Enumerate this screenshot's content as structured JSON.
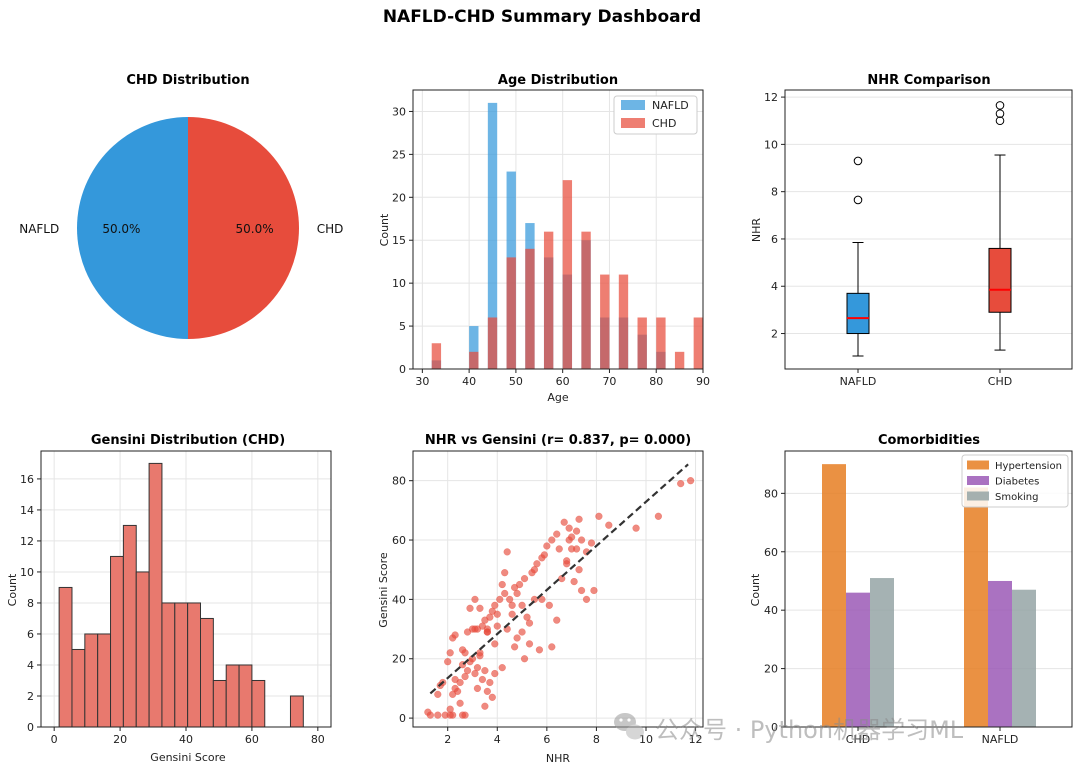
{
  "dashboard": {
    "title": "NAFLD-CHD Summary Dashboard"
  },
  "watermark": {
    "text": "公众号 · Python机器学习ML"
  },
  "colors": {
    "nafld": "#3498db",
    "chd": "#e74c3c",
    "hypertension": "#e67e22",
    "diabetes": "#9b59b6",
    "smoking": "#95a5a6",
    "scatter": "#e74c3c",
    "fit": "#333333",
    "gensini_hist": "#e8796e"
  },
  "chart_data": [
    {
      "id": "chd-distribution",
      "type": "pie",
      "title": "CHD Distribution",
      "slices": [
        {
          "label": "NAFLD",
          "value": 50.0,
          "pct_label": "50.0%"
        },
        {
          "label": "CHD",
          "value": 50.0,
          "pct_label": "50.0%"
        }
      ]
    },
    {
      "id": "age-distribution",
      "type": "bar",
      "title": "Age Distribution",
      "xlabel": "Age",
      "ylabel": "Count",
      "xlim": [
        28,
        90
      ],
      "ylim": [
        0,
        32.5
      ],
      "xticks": [
        30,
        40,
        50,
        60,
        70,
        80,
        90
      ],
      "yticks": [
        0,
        5,
        10,
        15,
        20,
        25,
        30
      ],
      "bin_width": 4,
      "series": [
        {
          "name": "NAFLD",
          "x": [
            34,
            42,
            46,
            50,
            54,
            58,
            62,
            66,
            70,
            74,
            78,
            82
          ],
          "values": [
            1,
            5,
            31,
            23,
            17,
            13,
            11,
            15,
            6,
            6,
            4,
            2
          ]
        },
        {
          "name": "CHD",
          "x": [
            32,
            40,
            44,
            48,
            52,
            56,
            60,
            64,
            68,
            72,
            76,
            80,
            84,
            88
          ],
          "values": [
            3,
            2,
            6,
            13,
            14,
            16,
            22,
            16,
            11,
            11,
            6,
            6,
            2,
            6
          ]
        }
      ],
      "legend": "top-right"
    },
    {
      "id": "nhr-comparison",
      "type": "box",
      "title": "NHR Comparison",
      "ylabel": "NHR",
      "ylim": [
        0.5,
        12.3
      ],
      "yticks": [
        2,
        4,
        6,
        8,
        10,
        12
      ],
      "categories": [
        "NAFLD",
        "CHD"
      ],
      "boxes": [
        {
          "name": "NAFLD",
          "whisker_low": 1.05,
          "q1": 2.0,
          "median": 2.65,
          "q3": 3.7,
          "whisker_high": 5.85,
          "outliers": [
            7.65,
            9.3
          ]
        },
        {
          "name": "CHD",
          "whisker_low": 1.3,
          "q1": 2.9,
          "median": 3.85,
          "q3": 5.6,
          "whisker_high": 9.55,
          "outliers": [
            11.0,
            11.3,
            11.65
          ]
        }
      ]
    },
    {
      "id": "gensini-distribution",
      "type": "bar",
      "title": "Gensini Distribution (CHD)",
      "xlabel": "Gensini Score",
      "ylabel": "Count",
      "xlim": [
        -4,
        84
      ],
      "ylim": [
        0,
        17.8
      ],
      "xticks": [
        0,
        20,
        40,
        60,
        80
      ],
      "yticks": [
        0,
        2,
        4,
        6,
        8,
        10,
        12,
        14,
        16
      ],
      "bin_start": 1.5,
      "bin_width": 3.9,
      "values": [
        9,
        5,
        6,
        6,
        11,
        13,
        10,
        17,
        8,
        8,
        8,
        7,
        3,
        4,
        4,
        3,
        0,
        0,
        2
      ]
    },
    {
      "id": "nhr-vs-gensini",
      "type": "scatter",
      "title": "NHR vs Gensini  (r= 0.837, p= 0.000)",
      "xlabel": "NHR",
      "ylabel": "Gensini Score",
      "xlim": [
        0.6,
        12.3
      ],
      "ylim": [
        -3,
        90
      ],
      "xticks": [
        2,
        4,
        6,
        8,
        10,
        12
      ],
      "yticks": [
        0,
        20,
        40,
        60,
        80
      ],
      "fit_line": {
        "x": [
          1.3,
          11.7
        ],
        "y": [
          8.3,
          85.5
        ]
      },
      "points": [
        [
          1.2,
          2
        ],
        [
          1.3,
          1
        ],
        [
          1.6,
          1
        ],
        [
          1.9,
          1
        ],
        [
          2.1,
          1
        ],
        [
          2.2,
          1
        ],
        [
          2.6,
          1
        ],
        [
          2.7,
          1
        ],
        [
          1.6,
          8
        ],
        [
          1.7,
          11
        ],
        [
          1.8,
          12
        ],
        [
          2.2,
          8
        ],
        [
          2.3,
          10
        ],
        [
          2.3,
          13
        ],
        [
          2.1,
          3
        ],
        [
          2.5,
          5
        ],
        [
          2.5,
          12
        ],
        [
          2.6,
          18
        ],
        [
          2.7,
          14
        ],
        [
          2.8,
          16
        ],
        [
          3.0,
          20
        ],
        [
          3.1,
          15
        ],
        [
          3.2,
          17
        ],
        [
          3.3,
          22
        ],
        [
          3.4,
          13
        ],
        [
          3.5,
          16
        ],
        [
          3.6,
          9
        ],
        [
          3.7,
          12
        ],
        [
          3.9,
          15
        ],
        [
          2.1,
          22
        ],
        [
          2.2,
          27
        ],
        [
          2.3,
          28
        ],
        [
          2.6,
          23
        ],
        [
          2.8,
          29
        ],
        [
          3.0,
          30
        ],
        [
          3.1,
          30
        ],
        [
          3.2,
          30
        ],
        [
          3.4,
          31
        ],
        [
          3.5,
          33
        ],
        [
          3.6,
          29
        ],
        [
          3.7,
          34
        ],
        [
          3.8,
          36
        ],
        [
          3.9,
          38
        ],
        [
          4.0,
          35
        ],
        [
          4.1,
          40
        ],
        [
          4.2,
          45
        ],
        [
          4.3,
          49
        ],
        [
          4.4,
          56
        ],
        [
          4.5,
          40
        ],
        [
          4.6,
          35
        ],
        [
          4.7,
          44
        ],
        [
          4.8,
          42
        ],
        [
          4.9,
          45
        ],
        [
          5.0,
          38
        ],
        [
          5.1,
          47
        ],
        [
          5.3,
          32
        ],
        [
          5.4,
          49
        ],
        [
          5.5,
          50
        ],
        [
          5.6,
          52
        ],
        [
          5.8,
          54
        ],
        [
          5.9,
          55
        ],
        [
          6.0,
          58
        ],
        [
          6.2,
          60
        ],
        [
          6.4,
          62
        ],
        [
          6.5,
          57
        ],
        [
          6.7,
          66
        ],
        [
          6.9,
          64
        ],
        [
          7.0,
          61
        ],
        [
          7.2,
          63
        ],
        [
          7.4,
          60
        ],
        [
          7.6,
          56
        ],
        [
          7.8,
          59
        ],
        [
          8.1,
          68
        ],
        [
          8.5,
          65
        ],
        [
          9.6,
          64
        ],
        [
          10.5,
          68
        ],
        [
          11.4,
          79
        ],
        [
          11.8,
          80
        ],
        [
          3.1,
          40
        ],
        [
          3.3,
          37
        ],
        [
          3.6,
          29
        ],
        [
          4.0,
          31
        ],
        [
          4.4,
          30
        ],
        [
          4.8,
          27
        ],
        [
          5.0,
          29
        ],
        [
          5.3,
          25
        ],
        [
          5.7,
          23
        ],
        [
          6.2,
          24
        ],
        [
          6.8,
          52
        ],
        [
          6.9,
          60
        ],
        [
          7.1,
          46
        ],
        [
          7.2,
          57
        ],
        [
          7.4,
          43
        ],
        [
          7.6,
          40
        ],
        [
          7.9,
          43
        ],
        [
          6.1,
          38
        ],
        [
          6.4,
          33
        ],
        [
          5.5,
          40
        ],
        [
          5.2,
          34
        ],
        [
          4.7,
          24
        ],
        [
          4.2,
          17
        ],
        [
          3.8,
          7
        ],
        [
          3.5,
          4
        ],
        [
          2.9,
          19
        ],
        [
          2.7,
          22
        ],
        [
          2.4,
          9
        ],
        [
          2.9,
          37
        ],
        [
          3.3,
          21
        ],
        [
          3.9,
          25
        ],
        [
          4.6,
          38
        ],
        [
          5.1,
          20
        ],
        [
          6.6,
          47
        ],
        [
          7.0,
          57
        ],
        [
          7.3,
          67
        ],
        [
          7.3,
          50
        ],
        [
          6.8,
          53
        ],
        [
          5.8,
          40
        ],
        [
          4.3,
          42
        ],
        [
          3.6,
          30
        ],
        [
          3.2,
          10
        ],
        [
          2.0,
          19
        ]
      ]
    },
    {
      "id": "comorbidities",
      "type": "bar",
      "title": "Comorbidities",
      "ylabel": "Count",
      "ylim": [
        0,
        94.5
      ],
      "yticks": [
        0,
        20,
        40,
        60,
        80
      ],
      "categories": [
        "CHD",
        "NAFLD"
      ],
      "series": [
        {
          "name": "Hypertension",
          "values": [
            90,
            82
          ]
        },
        {
          "name": "Diabetes",
          "values": [
            46,
            50
          ]
        },
        {
          "name": "Smoking",
          "values": [
            51,
            47
          ]
        }
      ],
      "legend": "top-right"
    }
  ]
}
